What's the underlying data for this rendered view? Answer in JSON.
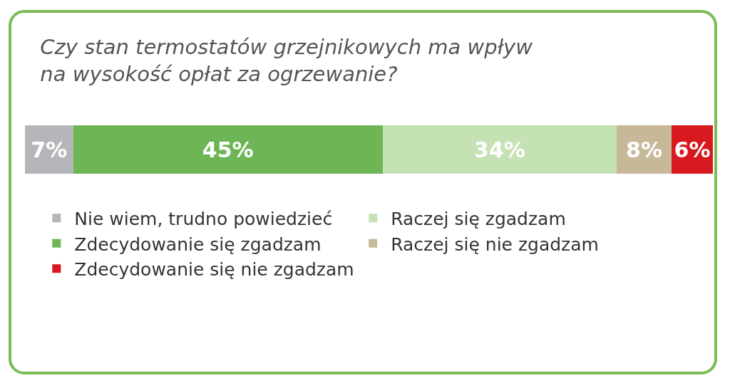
{
  "chart_data": {
    "type": "bar",
    "orientation": "horizontal",
    "stacked": true,
    "title": "Czy stan termostatów grzejnikowych ma wpływ\nna wysokość opłat za ogrzewanie?",
    "categories": [
      null
    ],
    "xlim": [
      0,
      100
    ],
    "legend": "bottom",
    "series": [
      {
        "name": "Nie wiem, trudno powiedzieć",
        "color": "#b5b6b9",
        "values": [
          7
        ],
        "value_labels": [
          "7%"
        ]
      },
      {
        "name": "Zdecydowanie się zgadzam",
        "color": "#6db555",
        "values": [
          45
        ],
        "value_labels": [
          "45%"
        ]
      },
      {
        "name": "Raczej się zgadzam",
        "color": "#c5e2b4",
        "values": [
          34
        ],
        "value_labels": [
          "34%"
        ]
      },
      {
        "name": "Raczej się nie zgadzam",
        "color": "#c8b89a",
        "values": [
          8
        ],
        "value_labels": [
          "8%"
        ]
      },
      {
        "name": "Zdecydowanie się nie zgadzam",
        "color": "#d7191f",
        "values": [
          6
        ],
        "value_labels": [
          "6%"
        ]
      }
    ]
  }
}
